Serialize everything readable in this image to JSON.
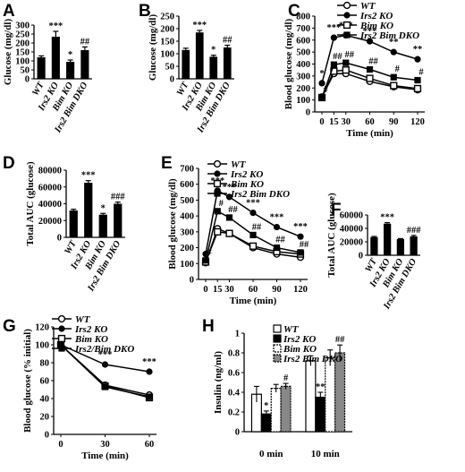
{
  "panel_letters": [
    "A",
    "B",
    "C",
    "D",
    "E",
    "F",
    "G",
    "H"
  ],
  "chart_data": [
    {
      "id": "A",
      "type": "bar",
      "categories": [
        "WT",
        "Irs2 KO",
        "Bim KO",
        "Irs2 Bim DKO"
      ],
      "values": [
        120,
        235,
        95,
        160
      ],
      "errors": [
        8,
        30,
        10,
        18
      ],
      "ylabel": "Glucose (mg/dl)",
      "ylim": [
        0,
        300
      ],
      "yticks": [
        "0",
        "50",
        "100",
        "150",
        "200",
        "250",
        "300"
      ],
      "annotations": [
        "",
        "***",
        "*",
        "##"
      ]
    },
    {
      "id": "B",
      "type": "bar",
      "categories": [
        "WT",
        "Irs2 KO",
        "Bim KO",
        "Irs2 Bim DKO"
      ],
      "values": [
        115,
        185,
        88,
        125
      ],
      "errors": [
        7,
        8,
        6,
        9
      ],
      "ylabel": "Glucose (mg/dl)",
      "ylim": [
        0,
        250
      ],
      "yticks": [
        "0",
        "50",
        "100",
        "150",
        "200",
        "250"
      ],
      "annotations": [
        "",
        "***",
        "*",
        "##"
      ]
    },
    {
      "id": "C",
      "type": "line",
      "x": [
        0,
        15,
        30,
        60,
        90,
        120
      ],
      "xlabel": "Time (min)",
      "ylabel": "Blood glucose (mg/dl)",
      "ylim": [
        0,
        800
      ],
      "yticks": [
        "0",
        "100",
        "200",
        "300",
        "400",
        "500",
        "600",
        "700",
        "800"
      ],
      "series": [
        {
          "name": "WT",
          "values": [
            125,
            320,
            320,
            255,
            210,
            185
          ]
        },
        {
          "name": "Irs2 KO",
          "values": [
            240,
            620,
            640,
            590,
            500,
            440
          ]
        },
        {
          "name": "Bim KO",
          "values": [
            120,
            340,
            350,
            280,
            220,
            195
          ]
        },
        {
          "name": "Irs2 Bim DKO",
          "values": [
            120,
            395,
            410,
            355,
            290,
            265
          ]
        }
      ],
      "annotations": [
        {
          "x": 0,
          "text": "*"
        },
        {
          "x": 15,
          "text": "***"
        },
        {
          "x": 30,
          "text": "***"
        },
        {
          "x": 60,
          "text": "***"
        },
        {
          "x": 90,
          "text": "**"
        },
        {
          "x": 120,
          "text": "**"
        },
        {
          "x": 15,
          "text": "##"
        },
        {
          "x": 30,
          "text": "##"
        },
        {
          "x": 60,
          "text": "##"
        },
        {
          "x": 90,
          "text": "#"
        },
        {
          "x": 120,
          "text": "#"
        },
        {
          "x": 0,
          "text": "#"
        }
      ]
    },
    {
      "id": "D",
      "type": "bar",
      "categories": [
        "WT",
        "Irs2 KO",
        "Bim KO",
        "Irs2 Bim DKO"
      ],
      "values": [
        32000,
        65000,
        27000,
        40000
      ],
      "errors": [
        1500,
        2500,
        1500,
        2000
      ],
      "ylabel": "Total AUC (glucose)",
      "ylim": [
        0,
        80000
      ],
      "yticks": [
        "0",
        "20000",
        "40000",
        "60000",
        "80000"
      ],
      "annotations": [
        "",
        "***",
        "*",
        "###"
      ]
    },
    {
      "id": "E",
      "type": "line",
      "x": [
        0,
        15,
        30,
        60,
        90,
        120
      ],
      "xlabel": "Time (min)",
      "ylabel": "Blood glucose (mg/dl)",
      "ylim": [
        0,
        700
      ],
      "yticks": [
        "0",
        "100",
        "200",
        "300",
        "400",
        "500",
        "600",
        "700"
      ],
      "series": [
        {
          "name": "WT",
          "values": [
            105,
            320,
            290,
            200,
            160,
            140
          ]
        },
        {
          "name": "Irs2 KO",
          "values": [
            160,
            560,
            520,
            420,
            330,
            270
          ]
        },
        {
          "name": "Bim KO",
          "values": [
            110,
            300,
            290,
            210,
            175,
            160
          ]
        },
        {
          "name": "Irs2 Bim DKO",
          "values": [
            120,
            430,
            390,
            280,
            200,
            170
          ]
        }
      ],
      "annotations": [
        {
          "x": 15,
          "text": "***"
        },
        {
          "x": 30,
          "text": "***"
        },
        {
          "x": 60,
          "text": "***"
        },
        {
          "x": 90,
          "text": "***"
        },
        {
          "x": 120,
          "text": "***"
        },
        {
          "x": 15,
          "text": "#"
        },
        {
          "x": 30,
          "text": "##"
        },
        {
          "x": 60,
          "text": "##"
        },
        {
          "x": 90,
          "text": "##"
        },
        {
          "x": 120,
          "text": "##"
        },
        {
          "x": 0,
          "text": "#"
        }
      ]
    },
    {
      "id": "F",
      "type": "bar",
      "categories": [
        "WT",
        "Irs2 KO",
        "Bim KO",
        "Irs2 Bim DKO"
      ],
      "values": [
        27000,
        47000,
        24000,
        28000
      ],
      "errors": [
        1000,
        1500,
        800,
        1500
      ],
      "ylabel": "Total AUC (glucose)",
      "ylim": [
        0,
        60000
      ],
      "yticks": [
        "0",
        "20000",
        "40000",
        "60000"
      ],
      "annotations": [
        "",
        "***",
        "",
        "###"
      ]
    },
    {
      "id": "G",
      "type": "line",
      "x": [
        0,
        30,
        60
      ],
      "xlabel": "Time (min)",
      "ylabel": "Blood glucose (% initial)",
      "ylim": [
        0,
        120
      ],
      "yticks": [
        "0",
        "20",
        "40",
        "60",
        "80",
        "100",
        "120"
      ],
      "series": [
        {
          "name": "WT",
          "values": [
            100,
            55,
            44
          ]
        },
        {
          "name": "Irs2 KO",
          "values": [
            100,
            78,
            70
          ]
        },
        {
          "name": "Bim KO",
          "values": [
            100,
            54,
            41
          ]
        },
        {
          "name": "Irs2/Bim DKO",
          "values": [
            100,
            53,
            42
          ]
        }
      ],
      "annotations": [
        {
          "x": 30,
          "text": "***"
        },
        {
          "x": 60,
          "text": "***"
        }
      ]
    },
    {
      "id": "H",
      "type": "bar",
      "categories": [
        "0 min",
        "10 min"
      ],
      "xlabel": "",
      "ylabel": "Insulin (ng/ml)",
      "ylim": [
        0,
        1
      ],
      "yticks": [
        "0",
        "0.2",
        "0.4",
        "0.6",
        "0.8",
        "1"
      ],
      "series": [
        {
          "name": "WT",
          "values": [
            0.38,
            0.72
          ],
          "errors": [
            0.08,
            0.05
          ]
        },
        {
          "name": "Irs2 KO",
          "values": [
            0.18,
            0.35
          ],
          "errors": [
            0.03,
            0.05
          ]
        },
        {
          "name": "Bim KO",
          "values": [
            0.44,
            0.75
          ],
          "errors": [
            0.04,
            0.08
          ]
        },
        {
          "name": "Irs2 Bim DKO",
          "values": [
            0.46,
            0.8
          ],
          "errors": [
            0.03,
            0.08
          ]
        }
      ],
      "annotations": [
        {
          "cat": 0,
          "text": "*"
        },
        {
          "cat": 0,
          "text": "#"
        },
        {
          "cat": 1,
          "text": "**"
        },
        {
          "cat": 1,
          "text": "##"
        }
      ]
    }
  ]
}
